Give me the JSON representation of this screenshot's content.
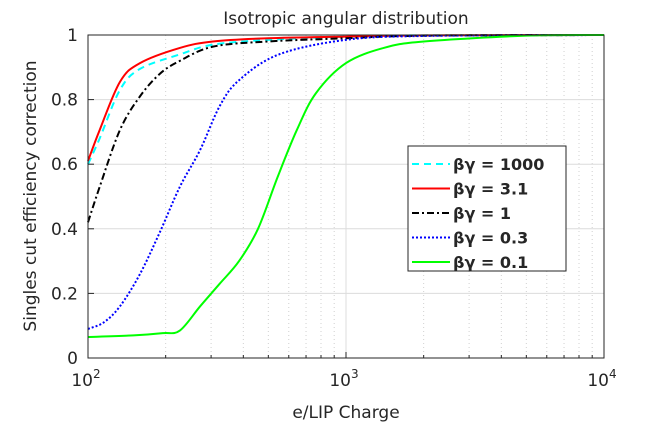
{
  "chart_data": {
    "type": "line",
    "title": "Isotropic angular distribution",
    "xlabel": "e/LIP Charge",
    "ylabel": "Singles cut efficiency correction",
    "xscale": "log",
    "xlim": [
      100,
      10000
    ],
    "ylim": [
      0,
      1
    ],
    "xticks": [
      {
        "base": "10",
        "exp": "2"
      },
      {
        "base": "10",
        "exp": "3"
      },
      {
        "base": "10",
        "exp": "4"
      }
    ],
    "yticks": [
      "0",
      "0.2",
      "0.4",
      "0.6",
      "0.8",
      "1"
    ],
    "grid": true,
    "legend_placement": "center-right",
    "series": [
      {
        "name": "βγ = 1000",
        "color": "#00ffff",
        "style": "dashed",
        "x": [
          100,
          111,
          133,
          159,
          227,
          305,
          500,
          1000,
          2000,
          10000
        ],
        "y": [
          0.6,
          0.68,
          0.83,
          0.895,
          0.94,
          0.97,
          0.985,
          0.995,
          0.999,
          1
        ]
      },
      {
        "name": "βγ = 3.1",
        "color": "#ff0000",
        "style": "solid",
        "x": [
          100,
          111,
          133,
          159,
          227,
          305,
          500,
          1000,
          2000,
          10000
        ],
        "y": [
          0.61,
          0.706,
          0.855,
          0.913,
          0.96,
          0.98,
          0.99,
          0.995,
          0.999,
          1
        ]
      },
      {
        "name": "βγ = 1",
        "color": "#000000",
        "style": "dashdot",
        "x": [
          100,
          111,
          133,
          159,
          190,
          227,
          305,
          500,
          1000,
          2000,
          10000
        ],
        "y": [
          0.42,
          0.53,
          0.706,
          0.81,
          0.88,
          0.92,
          0.964,
          0.98,
          0.99,
          0.998,
          1
        ]
      },
      {
        "name": "βγ = 0.3",
        "color": "#0000ff",
        "style": "dotted",
        "x": [
          100,
          115,
          133,
          159,
          190,
          227,
          272,
          324,
          385,
          550,
          1000,
          2000,
          10000
        ],
        "y": [
          0.09,
          0.11,
          0.16,
          0.26,
          0.39,
          0.53,
          0.644,
          0.78,
          0.86,
          0.94,
          0.985,
          0.997,
          1
        ]
      },
      {
        "name": "βγ = 0.1",
        "color": "#00ff00",
        "style": "solid",
        "x": [
          100,
          150,
          195,
          227,
          272,
          324,
          385,
          456,
          543,
          645,
          765,
          1000,
          1400,
          2000,
          5000,
          10000
        ],
        "y": [
          0.065,
          0.07,
          0.077,
          0.085,
          0.16,
          0.23,
          0.3,
          0.4,
          0.56,
          0.706,
          0.82,
          0.913,
          0.96,
          0.98,
          0.998,
          1
        ]
      }
    ]
  }
}
